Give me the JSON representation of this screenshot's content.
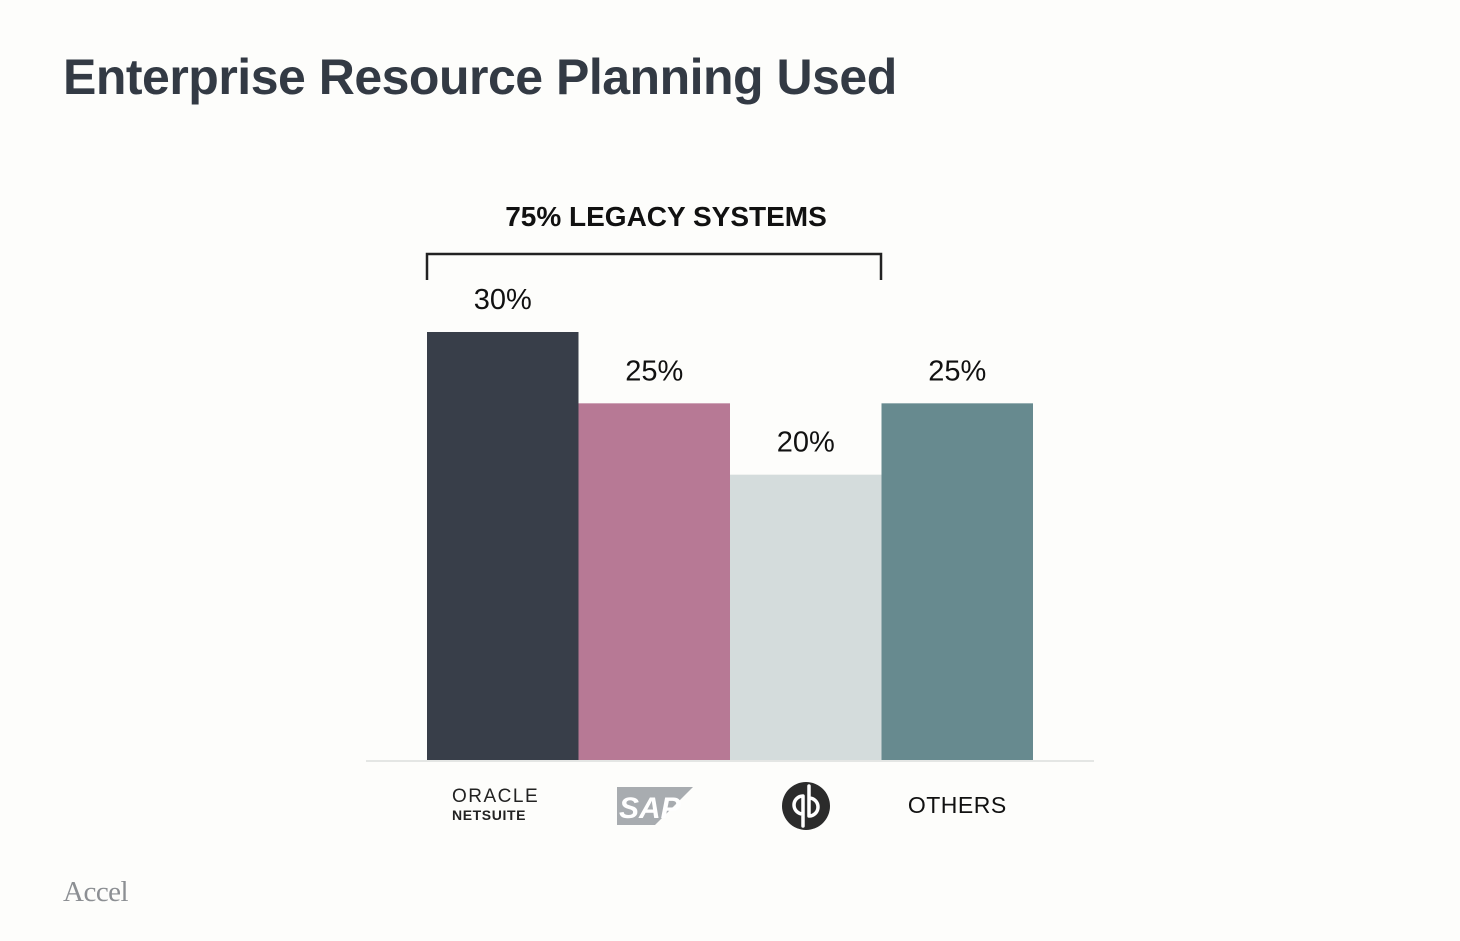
{
  "title": "Enterprise Resource Planning Used",
  "footer": {
    "logo_text": "Accel"
  },
  "bracket": {
    "label": "75% LEGACY SYSTEMS"
  },
  "colors": {
    "netsuite": "#383e49",
    "sap": "#b77995",
    "quickbooks": "#d4dcdc",
    "others": "#678a8f",
    "baseline": "#e6e8e6"
  },
  "chart_data": {
    "type": "bar",
    "categories": [
      "ORACLE NETSUITE",
      "SAP",
      "QuickBooks",
      "OTHERS"
    ],
    "values": [
      30,
      25,
      20,
      25
    ],
    "value_labels": [
      "30%",
      "25%",
      "20%",
      "25%"
    ],
    "category_logos": [
      {
        "type": "logo",
        "icon": "oracle-netsuite-logo",
        "line1": "ORACLE",
        "line2": "NETSUITE"
      },
      {
        "type": "logo",
        "icon": "sap-logo",
        "text": "SAP"
      },
      {
        "type": "logo",
        "icon": "quickbooks-logo",
        "text": "qb"
      },
      {
        "type": "text",
        "text": "OTHERS"
      }
    ],
    "ylim": [
      0,
      30
    ],
    "grid": false,
    "legend": "none",
    "annotations": [
      {
        "text": "75% LEGACY SYSTEMS",
        "spans_categories": [
          "ORACLE NETSUITE",
          "SAP",
          "QuickBooks"
        ]
      }
    ]
  }
}
